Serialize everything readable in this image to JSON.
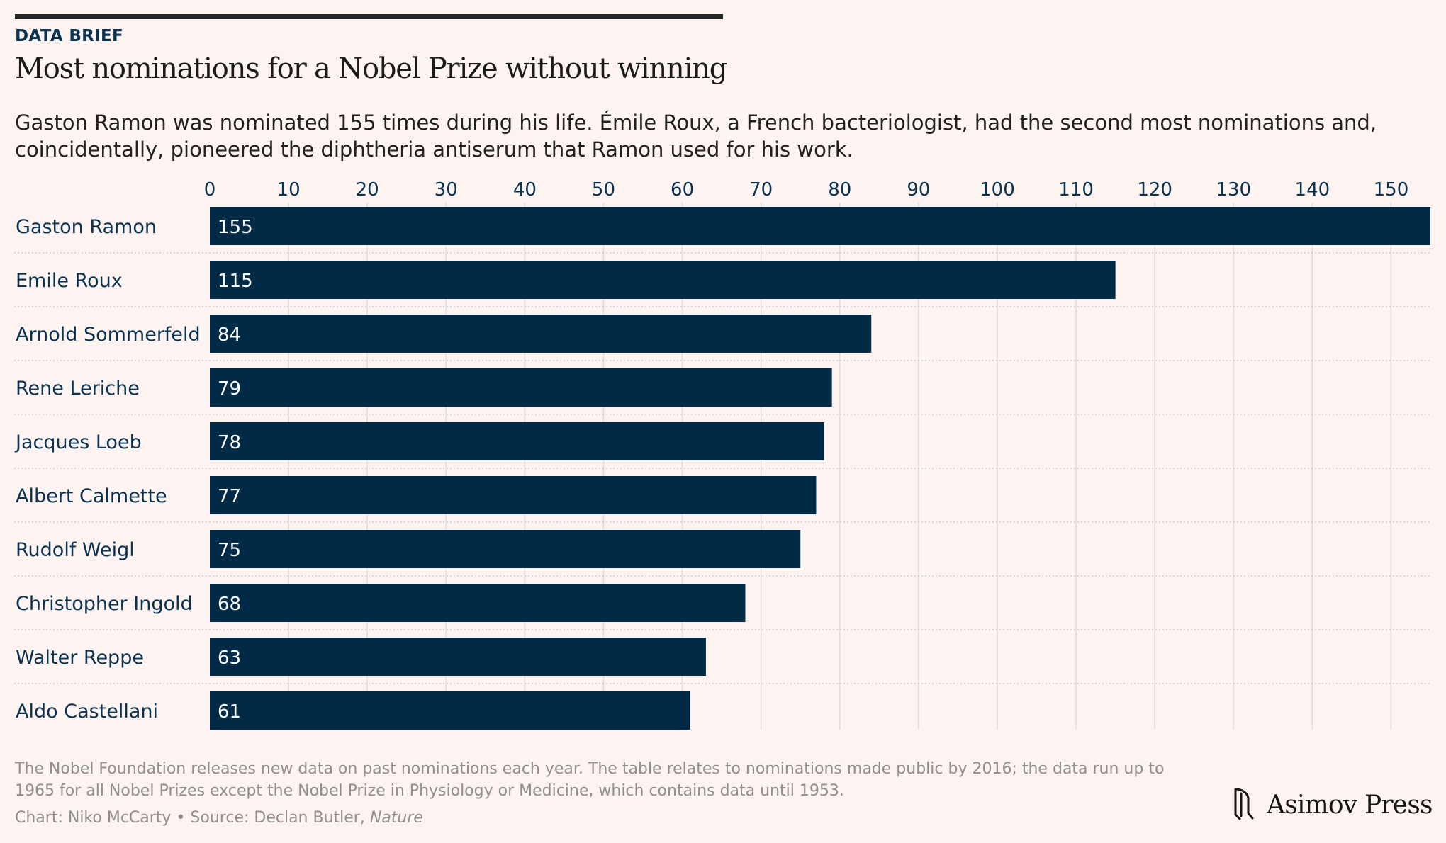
{
  "header": {
    "kicker": "DATA BRIEF",
    "title": "Most nominations for a Nobel Prize without winning",
    "subtitle": "Gaston Ramon was nominated 155 times during his life. Émile Roux, a French bacteriologist, had the second most nominations and, coincidentally, pioneered the diphtheria antiserum that Ramon used for his work."
  },
  "chart_data": {
    "type": "bar",
    "orientation": "horizontal",
    "categories": [
      "Gaston Ramon",
      "Emile Roux",
      "Arnold Sommerfeld",
      "Rene Leriche",
      "Jacques Loeb",
      "Albert Calmette",
      "Rudolf Weigl",
      "Christopher Ingold",
      "Walter Reppe",
      "Aldo Castellani"
    ],
    "values": [
      155,
      115,
      84,
      79,
      78,
      77,
      75,
      68,
      63,
      61
    ],
    "x_ticks": [
      0,
      10,
      20,
      30,
      40,
      50,
      60,
      70,
      80,
      90,
      100,
      110,
      120,
      130,
      140,
      150
    ],
    "xlim": [
      0,
      155
    ],
    "axis_position": "top",
    "grid": true,
    "bar_color": "#002a45",
    "label_color": "#0a3352"
  },
  "footer": {
    "note": "The Nobel Foundation releases new data on past nominations each year. The table relates to nominations made public by 2016; the data run up to 1965 for all Nobel Prizes except the Nobel Prize in Physiology or Medicine, which contains data until 1953.",
    "credit_prefix": "Chart: Niko McCarty • Source: Declan Butler, ",
    "credit_publication": "Nature",
    "brand": "Asimov Press",
    "brand_icon": "asimov-press-logo-icon"
  }
}
